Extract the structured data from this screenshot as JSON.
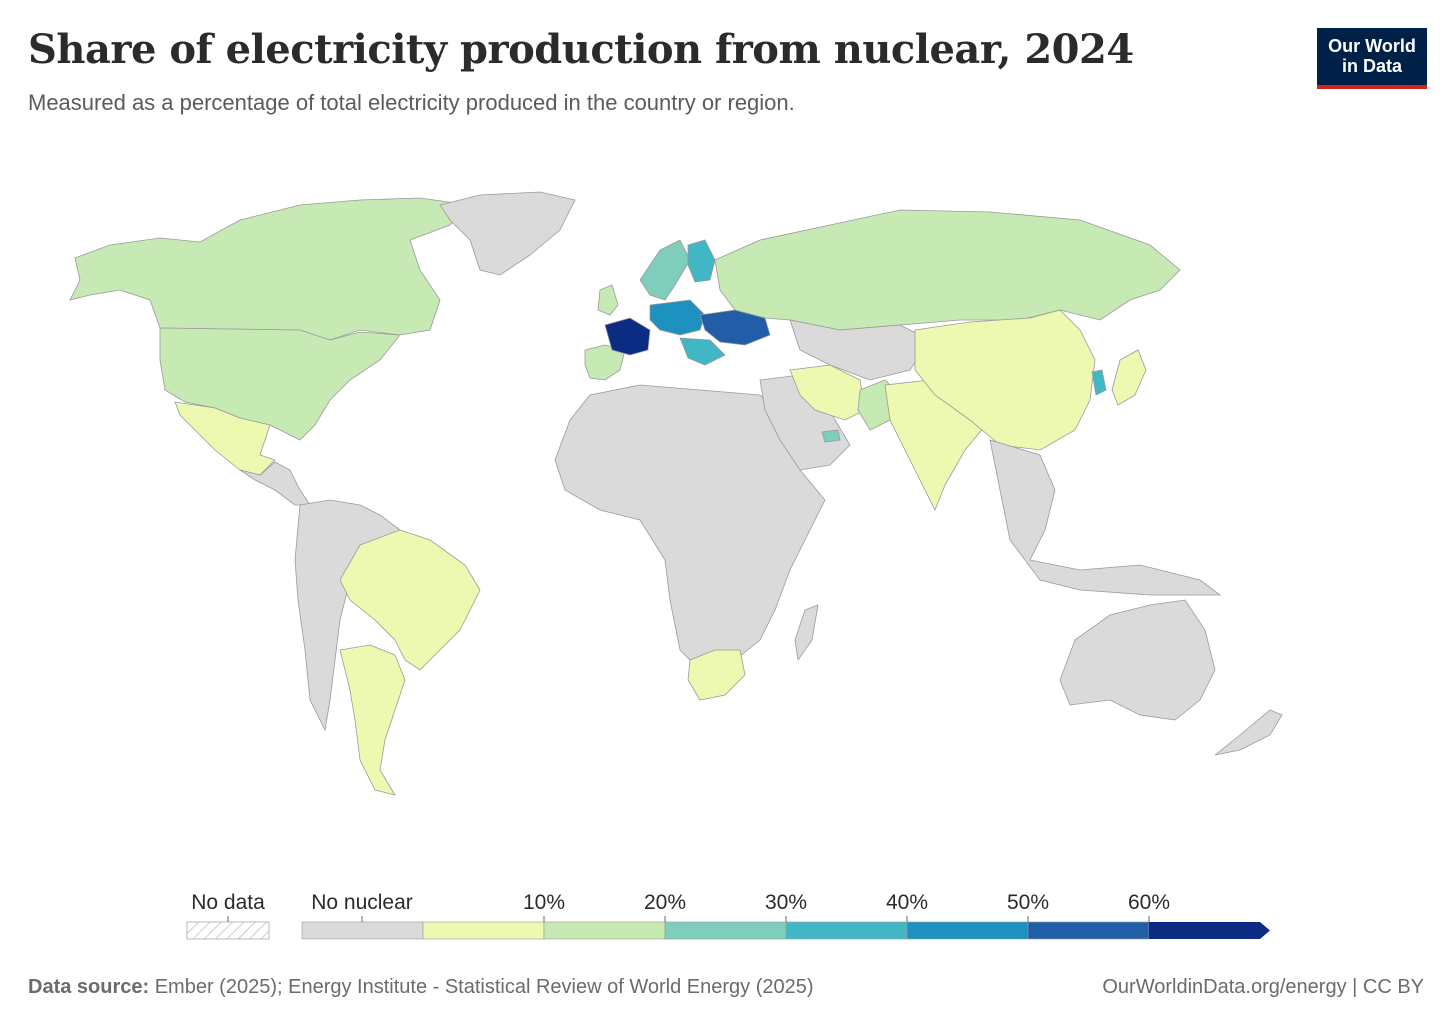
{
  "header": {
    "title": "Share of electricity production from nuclear, 2024",
    "subtitle": "Measured as a percentage of total electricity produced in the country or region."
  },
  "logo": {
    "line1": "Our World",
    "line2": "in Data"
  },
  "colors": {
    "no_data": "#ffffff",
    "no_nuclear": "#dadada",
    "bin_0_10": "#edf8b1",
    "bin_10_20": "#c7e9b4",
    "bin_20_30": "#7fcdbb",
    "bin_30_40": "#41b6c4",
    "bin_40_50": "#1d91c0",
    "bin_50_60": "#225ea8",
    "bin_60_plus": "#0c2c84",
    "ocean": "#ffffff",
    "border": "#9a9a9a"
  },
  "legend": {
    "no_data_label": "No data",
    "no_nuclear_label": "No nuclear",
    "ticks": [
      "10%",
      "20%",
      "30%",
      "40%",
      "50%",
      "60%"
    ]
  },
  "regions": {
    "north_america_north": {
      "name": "Canada",
      "bin": "10-20%"
    },
    "usa": {
      "name": "United States",
      "bin": "10-20%"
    },
    "mexico": {
      "name": "Mexico",
      "bin": "0-10%"
    },
    "central_america": {
      "name": "Central America",
      "bin": "No nuclear"
    },
    "greenland": {
      "name": "Greenland",
      "bin": "No nuclear"
    },
    "brazil": {
      "name": "Brazil",
      "bin": "0-10%"
    },
    "argentina": {
      "name": "Argentina",
      "bin": "0-10%"
    },
    "south_america_west": {
      "name": "Western South America",
      "bin": "No nuclear"
    },
    "iberia": {
      "name": "Spain",
      "bin": "10-20%"
    },
    "france": {
      "name": "France",
      "bin": "60%+"
    },
    "uk": {
      "name": "United Kingdom",
      "bin": "10-20%"
    },
    "scandinavia": {
      "name": "Sweden",
      "bin": "20-30%"
    },
    "finland": {
      "name": "Finland",
      "bin": "30-40%"
    },
    "ukraine": {
      "name": "Ukraine",
      "bin": "50-60%"
    },
    "central_europe": {
      "name": "Slovakia",
      "bin": "40-50%"
    },
    "balkans": {
      "name": "Bulgaria",
      "bin": "30-40%"
    },
    "russia": {
      "name": "Russia",
      "bin": "10-20%"
    },
    "africa": {
      "name": "Africa",
      "bin": "No nuclear"
    },
    "south_africa": {
      "name": "South Africa",
      "bin": "0-10%"
    },
    "middle_east": {
      "name": "Middle East",
      "bin": "No nuclear"
    },
    "iran": {
      "name": "Iran",
      "bin": "0-10%"
    },
    "uae": {
      "name": "United Arab Emirates",
      "bin": "20-30%"
    },
    "pakistan": {
      "name": "Pakistan",
      "bin": "10-20%"
    },
    "india": {
      "name": "India",
      "bin": "0-10%"
    },
    "china": {
      "name": "China",
      "bin": "0-10%"
    },
    "korea": {
      "name": "South Korea",
      "bin": "30-40%"
    },
    "japan": {
      "name": "Japan",
      "bin": "0-10%"
    },
    "central_asia": {
      "name": "Central Asia",
      "bin": "No nuclear"
    },
    "southeast_asia": {
      "name": "Southeast Asia",
      "bin": "No nuclear"
    },
    "australia": {
      "name": "Australia",
      "bin": "No nuclear"
    },
    "new_zealand": {
      "name": "New Zealand",
      "bin": "No nuclear"
    }
  },
  "footer": {
    "source_label": "Data source:",
    "source_text": " Ember (2025); Energy Institute - Statistical Review of World Energy (2025)",
    "url": "OurWorldinData.org/energy | CC BY"
  }
}
